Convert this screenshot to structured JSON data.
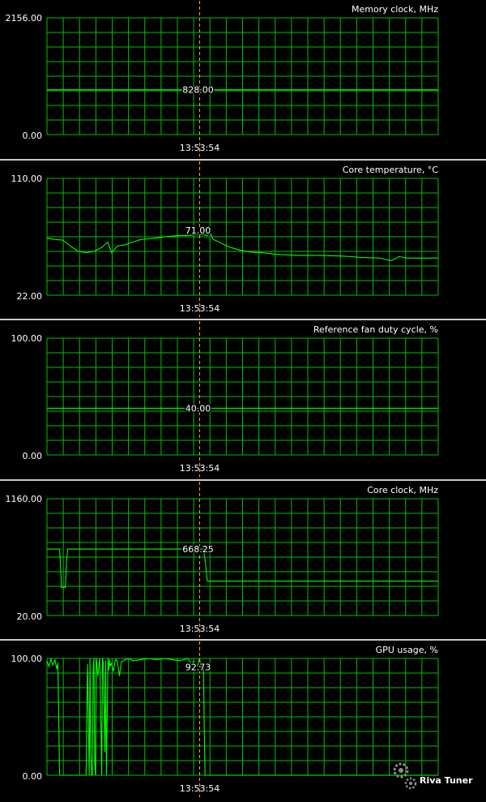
{
  "cursor_time": "13:53:54",
  "logo": "Riva Tuner",
  "colors": {
    "background": "#000000",
    "grid": "#00c000",
    "series": "#00ff00",
    "cursor": "#f2b21a",
    "separator": "#c8c8c8",
    "text": "#ffffff"
  },
  "chart_data": [
    {
      "type": "line",
      "title": "Memory clock, MHz",
      "ylim": [
        0,
        2156
      ],
      "ymax_label": "2156.00",
      "ymin_label": "0.00",
      "cursor_value_label": "828.00",
      "cursor_value": 828,
      "x": [
        0,
        0.25,
        0.5,
        0.75,
        1.0
      ],
      "values": [
        828,
        828,
        828,
        828,
        828
      ]
    },
    {
      "type": "line",
      "title": "Core temperature, °C",
      "ylim": [
        22,
        110
      ],
      "ymax_label": "110.00",
      "ymin_label": "22.00",
      "cursor_value_label": "71.00",
      "cursor_value": 71,
      "x": [
        0.0,
        0.02,
        0.04,
        0.06,
        0.08,
        0.1,
        0.12,
        0.14,
        0.155,
        0.165,
        0.18,
        0.2,
        0.22,
        0.24,
        0.26,
        0.28,
        0.3,
        0.32,
        0.34,
        0.36,
        0.38,
        0.4,
        0.41,
        0.415,
        0.425,
        0.44,
        0.46,
        0.48,
        0.5,
        0.52,
        0.55,
        0.58,
        0.6,
        0.65,
        0.7,
        0.75,
        0.78,
        0.8,
        0.85,
        0.88,
        0.9,
        0.92,
        0.95,
        1.0
      ],
      "values": [
        65,
        64,
        63.5,
        59,
        55,
        54,
        55,
        58,
        62,
        54,
        59,
        60,
        62,
        64,
        64.5,
        65,
        66,
        66.5,
        67,
        67,
        67.5,
        67.5,
        67,
        71,
        64,
        62,
        59,
        57,
        55.5,
        54.5,
        54,
        53,
        52.5,
        52,
        52,
        51.5,
        51,
        50.5,
        50,
        48,
        51,
        50,
        50,
        50
      ]
    },
    {
      "type": "line",
      "title": "Reference fan duty cycle, %",
      "ylim": [
        0,
        100
      ],
      "ymax_label": "100.00",
      "ymin_label": "0.00",
      "cursor_value_label": "40.00",
      "cursor_value": 40,
      "x": [
        0,
        0.25,
        0.5,
        0.75,
        1.0
      ],
      "values": [
        40,
        40,
        40,
        40,
        40
      ]
    },
    {
      "type": "line",
      "title": "Core clock, MHz",
      "ylim": [
        20,
        1160
      ],
      "ymax_label": "1160.00",
      "ymin_label": "20.00",
      "cursor_value_label": "668.25",
      "cursor_value": 668.25,
      "x": [
        0.0,
        0.032,
        0.034,
        0.037,
        0.047,
        0.05,
        0.053,
        0.1,
        0.2,
        0.3,
        0.39,
        0.4,
        0.404,
        0.41,
        0.5,
        0.6,
        0.7,
        0.8,
        0.9,
        1.0
      ],
      "values": [
        668,
        668,
        560,
        295,
        295,
        560,
        668,
        668,
        668,
        668,
        668,
        668,
        565,
        355,
        355,
        355,
        355,
        355,
        355,
        355
      ]
    },
    {
      "type": "line",
      "title": "GPU usage, %",
      "ylim": [
        0,
        100
      ],
      "ymax_label": "100.00",
      "ymin_label": "0.00",
      "cursor_value_label": "92.73",
      "cursor_value": 92.73,
      "x": [
        0.0,
        0.005,
        0.01,
        0.015,
        0.02,
        0.025,
        0.028,
        0.03,
        0.032,
        0.034,
        0.036,
        0.04,
        0.1,
        0.102,
        0.104,
        0.106,
        0.108,
        0.11,
        0.112,
        0.114,
        0.116,
        0.118,
        0.12,
        0.122,
        0.124,
        0.126,
        0.13,
        0.135,
        0.14,
        0.142,
        0.144,
        0.148,
        0.15,
        0.152,
        0.156,
        0.158,
        0.16,
        0.162,
        0.165,
        0.17,
        0.175,
        0.18,
        0.185,
        0.19,
        0.2,
        0.21,
        0.22,
        0.24,
        0.26,
        0.28,
        0.3,
        0.32,
        0.34,
        0.36,
        0.37,
        0.375,
        0.38,
        0.385,
        0.39,
        0.395,
        0.4,
        0.402,
        0.404,
        0.5,
        0.6,
        0.7,
        0.8,
        0.9,
        1.0
      ],
      "values": [
        98,
        93,
        100,
        94,
        99,
        91,
        96,
        50,
        0,
        0,
        0,
        0,
        0,
        60,
        95,
        40,
        0,
        100,
        20,
        0,
        0,
        90,
        100,
        10,
        0,
        100,
        85,
        100,
        0,
        100,
        96,
        20,
        98,
        0,
        100,
        90,
        99,
        93,
        96,
        89,
        99,
        98,
        85,
        97,
        99,
        100,
        98,
        99,
        100,
        99,
        100,
        99,
        98,
        100,
        95,
        98,
        92.73,
        94,
        100,
        90,
        92,
        40,
        0,
        0,
        0,
        0,
        0,
        0,
        0
      ]
    }
  ]
}
